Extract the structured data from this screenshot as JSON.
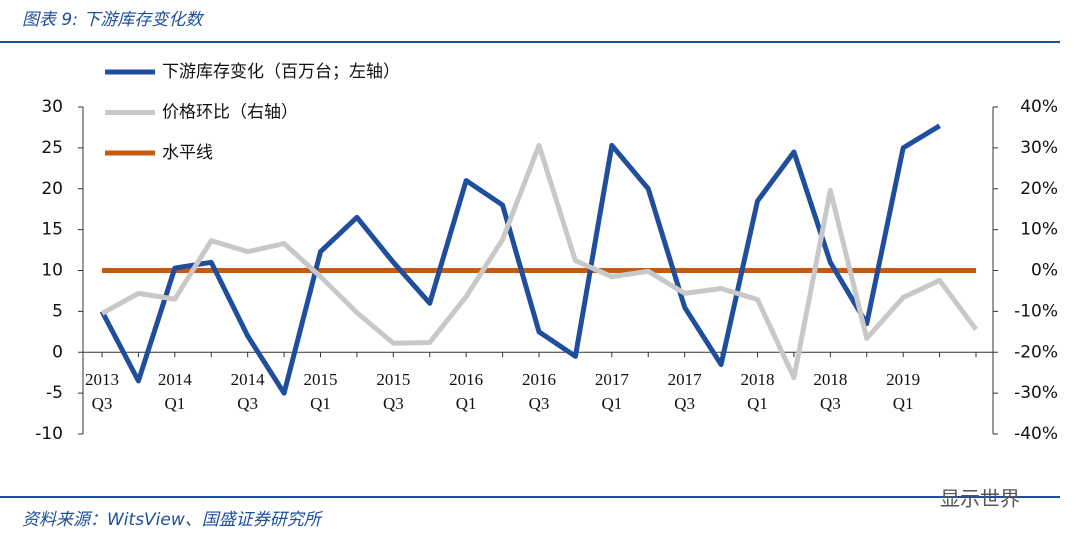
{
  "figure_title": "图表 9: 下游库存变化数",
  "source": "资料来源：WitsView、国盛证券研究所",
  "watermark": "显示世界",
  "chart_data": {
    "type": "line",
    "categories": [
      "2013\nQ3",
      null,
      "2014\nQ1",
      null,
      "2014\nQ3",
      null,
      "2015\nQ1",
      null,
      "2015\nQ3",
      null,
      "2016\nQ1",
      null,
      "2016\nQ3",
      null,
      "2017\nQ1",
      null,
      "2017\nQ3",
      null,
      "2018\nQ1",
      null,
      "2018\nQ3",
      null,
      "2019\nQ1",
      null,
      null
    ],
    "series": [
      {
        "name": "下游库存变化（百万台；左轴）",
        "color": "#1f4e9c",
        "values": [
          5,
          -3.5,
          10.3,
          11,
          2,
          -5,
          12.3,
          16.5,
          11,
          6,
          21,
          18,
          2.5,
          -0.5,
          25.3,
          20,
          5.5,
          -1.5,
          18.5,
          24.5,
          11,
          3.5,
          25,
          27.7,
          null
        ]
      },
      {
        "name": "价格环比（右轴）",
        "color": "#c8c8c8",
        "axis": "y2",
        "values": [
          -10.5,
          -5.6,
          -7,
          7.3,
          4.6,
          6.6,
          -1.5,
          -10.3,
          -17.8,
          -17.6,
          -6.4,
          7.6,
          30.6,
          2.4,
          -1.5,
          -0.2,
          -5.6,
          -4.4,
          -7.1,
          -26.2,
          19.6,
          -16.6,
          -6.6,
          -2.4,
          -14.4
        ]
      }
    ],
    "reference_line": {
      "name": "水平线",
      "value": 10,
      "color": "#c55a11"
    },
    "ylim": [
      -10,
      30
    ],
    "yticks": [
      -10,
      -5,
      0,
      5,
      10,
      15,
      20,
      25,
      30
    ],
    "y2lim": [
      -40,
      40
    ],
    "y2ticks": [
      {
        "value": -40,
        "label": "-40%"
      },
      {
        "value": -30,
        "label": "-30%"
      },
      {
        "value": -20,
        "label": "-20%"
      },
      {
        "value": -10,
        "label": "-10%"
      },
      {
        "value": 0,
        "label": "0%"
      },
      {
        "value": 10,
        "label": "10%"
      },
      {
        "value": 20,
        "label": "20%"
      },
      {
        "value": 30,
        "label": "30%"
      },
      {
        "value": 40,
        "label": "40%"
      }
    ]
  }
}
